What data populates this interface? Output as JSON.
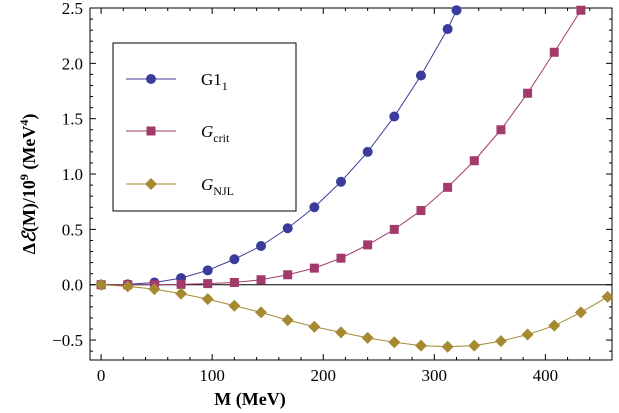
{
  "chart_data": {
    "type": "line",
    "title": "",
    "xlabel": "M (MeV)",
    "ylabel_parts": {
      "delta": "Δ",
      "script_e": "ℰ",
      "middle": "(M)/10",
      "exp9": "9",
      "unit_open": " (MeV",
      "exp4": "4",
      "unit_close": ")"
    },
    "xlim": [
      -10,
      460
    ],
    "ylim": [
      -0.68,
      2.5
    ],
    "x_ticks": [
      0,
      100,
      200,
      300,
      400
    ],
    "x_tick_labels": [
      "0",
      "100",
      "200",
      "300",
      "400"
    ],
    "y_ticks": [
      -0.5,
      0.0,
      0.5,
      1.0,
      1.5,
      2.0,
      2.5
    ],
    "y_tick_labels": [
      "−0.5",
      "0.0",
      "0.5",
      "1.0",
      "1.5",
      "2.0",
      "2.5"
    ],
    "zero_line": true,
    "grid": false,
    "legend_placement": "top-left",
    "series": [
      {
        "label_main": "G1",
        "label_sub": "1",
        "label_italic": false,
        "marker": "circle",
        "color": "#3a3b9b",
        "x": [
          0,
          24,
          48,
          72,
          96,
          120,
          144,
          168,
          192,
          216,
          240,
          264,
          288,
          312,
          320
        ],
        "y": [
          0.0,
          0.003,
          0.02,
          0.06,
          0.13,
          0.23,
          0.35,
          0.51,
          0.7,
          0.93,
          1.2,
          1.52,
          1.89,
          2.31,
          2.48
        ]
      },
      {
        "label_main": "G",
        "label_sub": "crit",
        "label_italic": true,
        "marker": "square",
        "color": "#a23a6a",
        "x": [
          0,
          24,
          48,
          72,
          96,
          120,
          144,
          168,
          192,
          216,
          240,
          264,
          288,
          312,
          336,
          360,
          384,
          408,
          432
        ],
        "y": [
          0.0,
          0.0,
          0.0,
          0.003,
          0.01,
          0.02,
          0.045,
          0.09,
          0.15,
          0.24,
          0.36,
          0.5,
          0.67,
          0.88,
          1.12,
          1.4,
          1.73,
          2.1,
          2.48
        ]
      },
      {
        "label_main": "G",
        "label_sub": "NJL",
        "label_italic": true,
        "marker": "diamond",
        "color": "#a58a32",
        "x": [
          0,
          24,
          48,
          72,
          96,
          120,
          144,
          168,
          192,
          216,
          240,
          264,
          288,
          312,
          336,
          360,
          384,
          408,
          432,
          456
        ],
        "y": [
          0.0,
          -0.015,
          -0.04,
          -0.08,
          -0.13,
          -0.19,
          -0.25,
          -0.32,
          -0.38,
          -0.43,
          -0.48,
          -0.52,
          -0.55,
          -0.56,
          -0.55,
          -0.51,
          -0.45,
          -0.37,
          -0.25,
          -0.11
        ]
      }
    ]
  }
}
